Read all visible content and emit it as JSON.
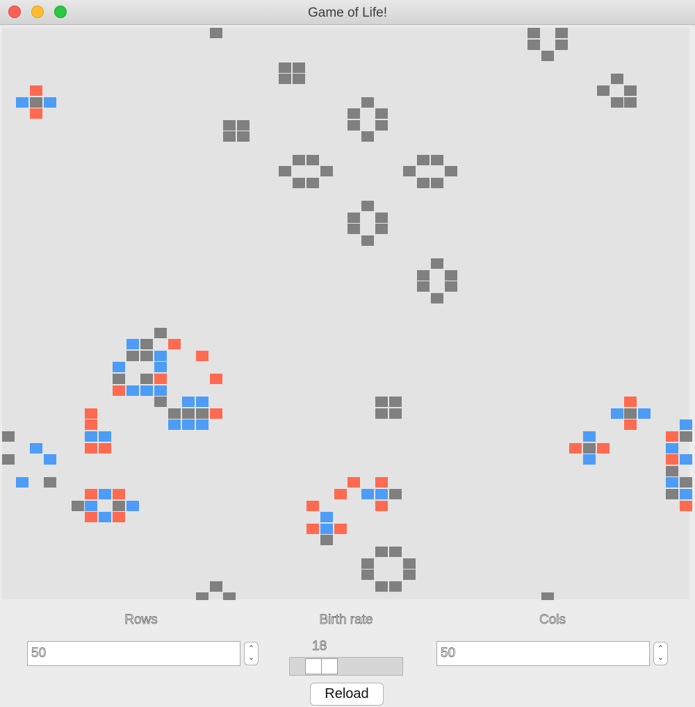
{
  "window": {
    "title": "Game of Life!"
  },
  "colors": {
    "board": "#e3e3e3",
    "stable": "#808080",
    "born": "#ff6a50",
    "dying": "#4d9cf7"
  },
  "board": {
    "cols": 50,
    "rows": 50,
    "cells": [
      [
        15,
        0,
        "stable"
      ],
      [
        38,
        0,
        "stable"
      ],
      [
        40,
        0,
        "stable"
      ],
      [
        38,
        1,
        "stable"
      ],
      [
        40,
        1,
        "stable"
      ],
      [
        39,
        2,
        "stable"
      ],
      [
        20,
        3,
        "stable"
      ],
      [
        21,
        3,
        "stable"
      ],
      [
        20,
        4,
        "stable"
      ],
      [
        21,
        4,
        "stable"
      ],
      [
        44,
        4,
        "stable"
      ],
      [
        43,
        5,
        "stable"
      ],
      [
        45,
        5,
        "stable"
      ],
      [
        44,
        6,
        "stable"
      ],
      [
        45,
        6,
        "stable"
      ],
      [
        2,
        5,
        "born"
      ],
      [
        1,
        6,
        "dying"
      ],
      [
        2,
        6,
        "stable"
      ],
      [
        3,
        6,
        "dying"
      ],
      [
        2,
        7,
        "born"
      ],
      [
        26,
        6,
        "stable"
      ],
      [
        25,
        7,
        "stable"
      ],
      [
        27,
        7,
        "stable"
      ],
      [
        25,
        8,
        "stable"
      ],
      [
        27,
        8,
        "stable"
      ],
      [
        26,
        9,
        "stable"
      ],
      [
        16,
        8,
        "stable"
      ],
      [
        17,
        8,
        "stable"
      ],
      [
        16,
        9,
        "stable"
      ],
      [
        17,
        9,
        "stable"
      ],
      [
        21,
        11,
        "stable"
      ],
      [
        22,
        11,
        "stable"
      ],
      [
        20,
        12,
        "stable"
      ],
      [
        23,
        12,
        "stable"
      ],
      [
        21,
        13,
        "stable"
      ],
      [
        22,
        13,
        "stable"
      ],
      [
        30,
        11,
        "stable"
      ],
      [
        31,
        11,
        "stable"
      ],
      [
        29,
        12,
        "stable"
      ],
      [
        32,
        12,
        "stable"
      ],
      [
        30,
        13,
        "stable"
      ],
      [
        31,
        13,
        "stable"
      ],
      [
        26,
        15,
        "stable"
      ],
      [
        25,
        16,
        "stable"
      ],
      [
        27,
        16,
        "stable"
      ],
      [
        25,
        17,
        "stable"
      ],
      [
        27,
        17,
        "stable"
      ],
      [
        26,
        18,
        "stable"
      ],
      [
        31,
        20,
        "stable"
      ],
      [
        30,
        21,
        "stable"
      ],
      [
        32,
        21,
        "stable"
      ],
      [
        30,
        22,
        "stable"
      ],
      [
        32,
        22,
        "stable"
      ],
      [
        31,
        23,
        "stable"
      ],
      [
        11,
        26,
        "stable"
      ],
      [
        9,
        27,
        "dying"
      ],
      [
        10,
        27,
        "stable"
      ],
      [
        12,
        27,
        "born"
      ],
      [
        9,
        28,
        "stable"
      ],
      [
        10,
        28,
        "stable"
      ],
      [
        11,
        28,
        "dying"
      ],
      [
        14,
        28,
        "born"
      ],
      [
        8,
        29,
        "dying"
      ],
      [
        11,
        29,
        "dying"
      ],
      [
        8,
        30,
        "stable"
      ],
      [
        10,
        30,
        "stable"
      ],
      [
        11,
        30,
        "born"
      ],
      [
        15,
        30,
        "born"
      ],
      [
        8,
        31,
        "born"
      ],
      [
        9,
        31,
        "dying"
      ],
      [
        10,
        31,
        "dying"
      ],
      [
        11,
        31,
        "dying"
      ],
      [
        11,
        32,
        "stable"
      ],
      [
        13,
        32,
        "dying"
      ],
      [
        14,
        32,
        "dying"
      ],
      [
        12,
        33,
        "stable"
      ],
      [
        13,
        33,
        "stable"
      ],
      [
        14,
        33,
        "stable"
      ],
      [
        15,
        33,
        "born"
      ],
      [
        12,
        34,
        "dying"
      ],
      [
        13,
        34,
        "dying"
      ],
      [
        14,
        34,
        "dying"
      ],
      [
        27,
        32,
        "stable"
      ],
      [
        28,
        32,
        "stable"
      ],
      [
        27,
        33,
        "stable"
      ],
      [
        28,
        33,
        "stable"
      ],
      [
        45,
        32,
        "born"
      ],
      [
        44,
        33,
        "dying"
      ],
      [
        45,
        33,
        "stable"
      ],
      [
        46,
        33,
        "dying"
      ],
      [
        45,
        34,
        "born"
      ],
      [
        6,
        33,
        "born"
      ],
      [
        6,
        34,
        "born"
      ],
      [
        6,
        35,
        "dying"
      ],
      [
        7,
        35,
        "dying"
      ],
      [
        6,
        36,
        "born"
      ],
      [
        7,
        36,
        "born"
      ],
      [
        0,
        35,
        "stable"
      ],
      [
        2,
        36,
        "dying"
      ],
      [
        0,
        37,
        "stable"
      ],
      [
        3,
        37,
        "dying"
      ],
      [
        1,
        39,
        "dying"
      ],
      [
        3,
        39,
        "stable"
      ],
      [
        42,
        35,
        "dying"
      ],
      [
        41,
        36,
        "born"
      ],
      [
        42,
        36,
        "stable"
      ],
      [
        43,
        36,
        "born"
      ],
      [
        42,
        37,
        "dying"
      ],
      [
        49,
        34,
        "dying"
      ],
      [
        48,
        35,
        "born"
      ],
      [
        49,
        35,
        "stable"
      ],
      [
        48,
        36,
        "dying"
      ],
      [
        48,
        37,
        "born"
      ],
      [
        49,
        37,
        "dying"
      ],
      [
        48,
        38,
        "stable"
      ],
      [
        48,
        39,
        "dying"
      ],
      [
        49,
        39,
        "stable"
      ],
      [
        48,
        40,
        "stable"
      ],
      [
        49,
        40,
        "dying"
      ],
      [
        49,
        41,
        "born"
      ],
      [
        25,
        39,
        "born"
      ],
      [
        27,
        39,
        "born"
      ],
      [
        24,
        40,
        "born"
      ],
      [
        26,
        40,
        "dying"
      ],
      [
        27,
        40,
        "dying"
      ],
      [
        28,
        40,
        "stable"
      ],
      [
        22,
        41,
        "born"
      ],
      [
        27,
        41,
        "born"
      ],
      [
        6,
        40,
        "born"
      ],
      [
        7,
        40,
        "dying"
      ],
      [
        8,
        40,
        "born"
      ],
      [
        5,
        41,
        "stable"
      ],
      [
        6,
        41,
        "dying"
      ],
      [
        8,
        41,
        "stable"
      ],
      [
        9,
        41,
        "dying"
      ],
      [
        6,
        42,
        "born"
      ],
      [
        7,
        42,
        "dying"
      ],
      [
        8,
        42,
        "born"
      ],
      [
        23,
        42,
        "dying"
      ],
      [
        22,
        43,
        "born"
      ],
      [
        23,
        43,
        "dying"
      ],
      [
        24,
        43,
        "born"
      ],
      [
        23,
        44,
        "stable"
      ],
      [
        27,
        45,
        "stable"
      ],
      [
        28,
        45,
        "stable"
      ],
      [
        26,
        46,
        "stable"
      ],
      [
        29,
        46,
        "stable"
      ],
      [
        26,
        47,
        "stable"
      ],
      [
        29,
        47,
        "stable"
      ],
      [
        27,
        48,
        "stable"
      ],
      [
        28,
        48,
        "stable"
      ],
      [
        15,
        48,
        "stable"
      ],
      [
        14,
        49,
        "stable"
      ],
      [
        16,
        49,
        "stable"
      ],
      [
        39,
        49,
        "stable"
      ]
    ]
  },
  "controls": {
    "rows_label": "Rows",
    "rows_value": "50",
    "birth_rate_label": "Birth rate",
    "birth_rate_value": "18",
    "cols_label": "Cols",
    "cols_value": "50",
    "reload_label": "Reload"
  }
}
